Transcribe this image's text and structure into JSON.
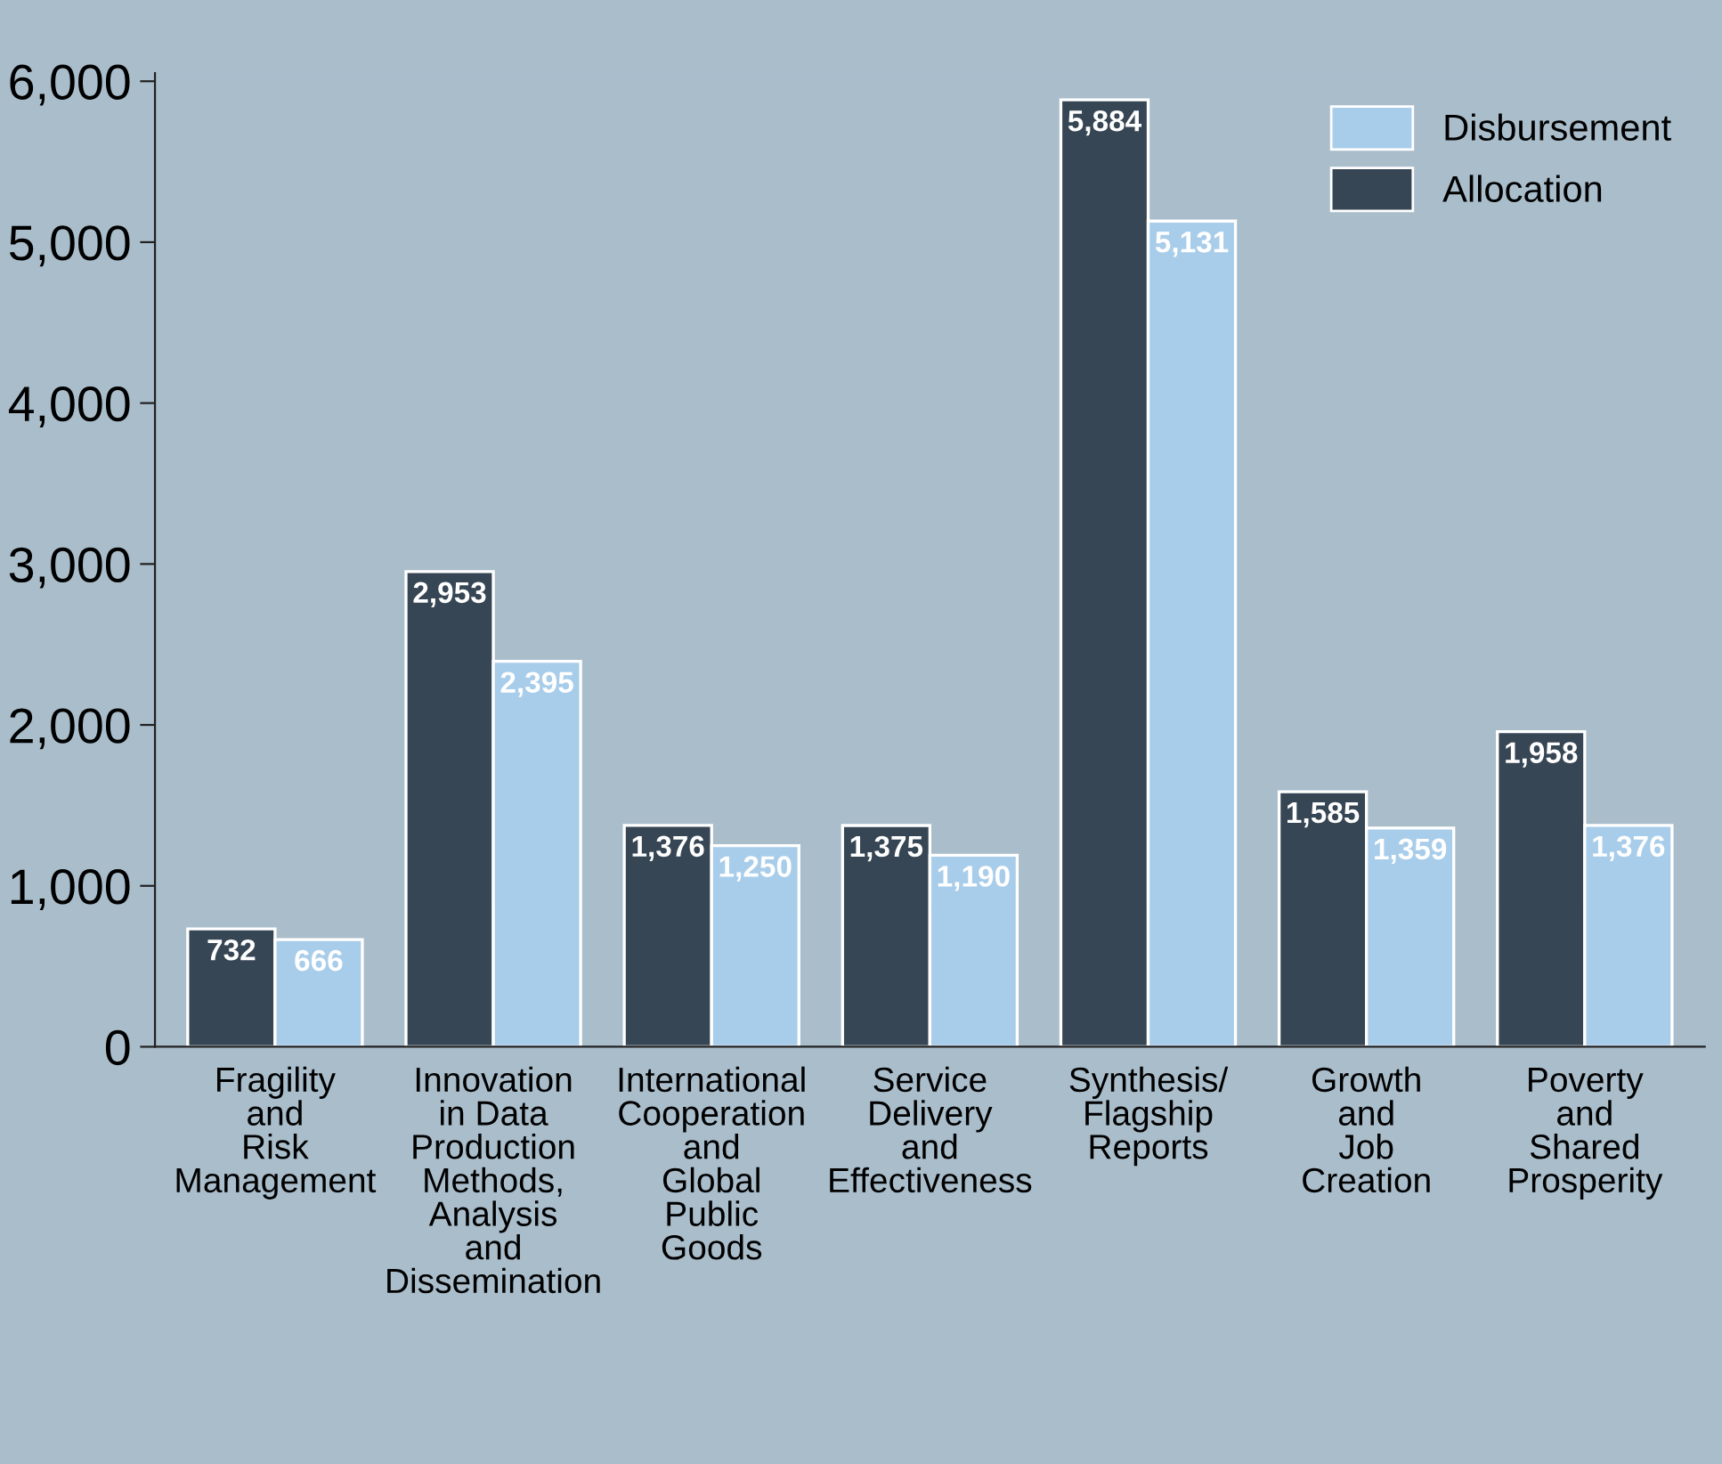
{
  "chart_data": {
    "type": "bar",
    "categories": [
      "Fragility\nand\nRisk\nManagement",
      "Innovation\nin Data\nProduction\nMethods,\nAnalysis\nand\nDissemination",
      "International\nCooperation\nand\nGlobal\nPublic\nGoods",
      "Service\nDelivery\nand\nEffectiveness",
      "Synthesis/\nFlagship\nReports",
      "Growth\nand\nJob\nCreation",
      "Poverty\nand\nShared\nProsperity"
    ],
    "series": [
      {
        "name": "Allocation",
        "color": "#374654",
        "values": [
          732,
          2953,
          1376,
          1375,
          5884,
          1585,
          1958
        ],
        "value_labels": [
          "732",
          "2,953",
          "1,376",
          "1,375",
          "5,884",
          "1,585",
          "1,958"
        ]
      },
      {
        "name": "Disbursement",
        "color": "#a8cdea",
        "values": [
          666,
          2395,
          1250,
          1190,
          5131,
          1359,
          1376
        ],
        "value_labels": [
          "666",
          "2,395",
          "1,250",
          "1,190",
          "5,131",
          "1,359",
          "1,376"
        ]
      }
    ],
    "ylim": [
      0,
      6050
    ],
    "yticks": [
      0,
      {
        "value": 1000,
        "label": "1,000"
      },
      {
        "value": 2000,
        "label": "2,000"
      },
      {
        "value": 3000,
        "label": "3,000"
      },
      {
        "value": 4000,
        "label": "4,000"
      },
      {
        "value": 5000,
        "label": "5,000"
      },
      {
        "value": 6000,
        "label": "6,000"
      }
    ],
    "grid": false,
    "legend": "top right"
  }
}
